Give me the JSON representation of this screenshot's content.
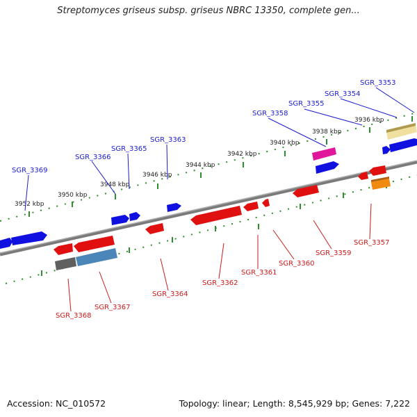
{
  "title": "Streptomyces griseus subsp. griseus NBRC 13350, complete gen...",
  "footer": {
    "accession": "Accession: NC_010572",
    "summary": "Topology: linear; Length: 8,545,929 bp; Genes: 7,222"
  },
  "colors": {
    "backbone": "#808080",
    "ruler": "#2e8b2e",
    "top_strand_label": "#1a1acc",
    "bottom_strand_label": "#cc1a1a"
  },
  "kbp_ticks": [
    "3952 kbp",
    "3950 kbp",
    "3948 kbp",
    "3946 kbp",
    "3944 kbp",
    "3942 kbp",
    "3940 kbp",
    "3938 kbp",
    "3936 kbp"
  ],
  "top_labels": [
    "SGR_3369",
    "SGR_3366",
    "SGR_3365",
    "SGR_3363",
    "SGR_3358",
    "SGR_3355",
    "SGR_3354",
    "SGR_3353"
  ],
  "bottom_labels": [
    "SGR_3368",
    "SGR_3367",
    "SGR_3364",
    "SGR_3362",
    "SGR_3361",
    "SGR_3360",
    "SGR_3359",
    "SGR_3357"
  ]
}
